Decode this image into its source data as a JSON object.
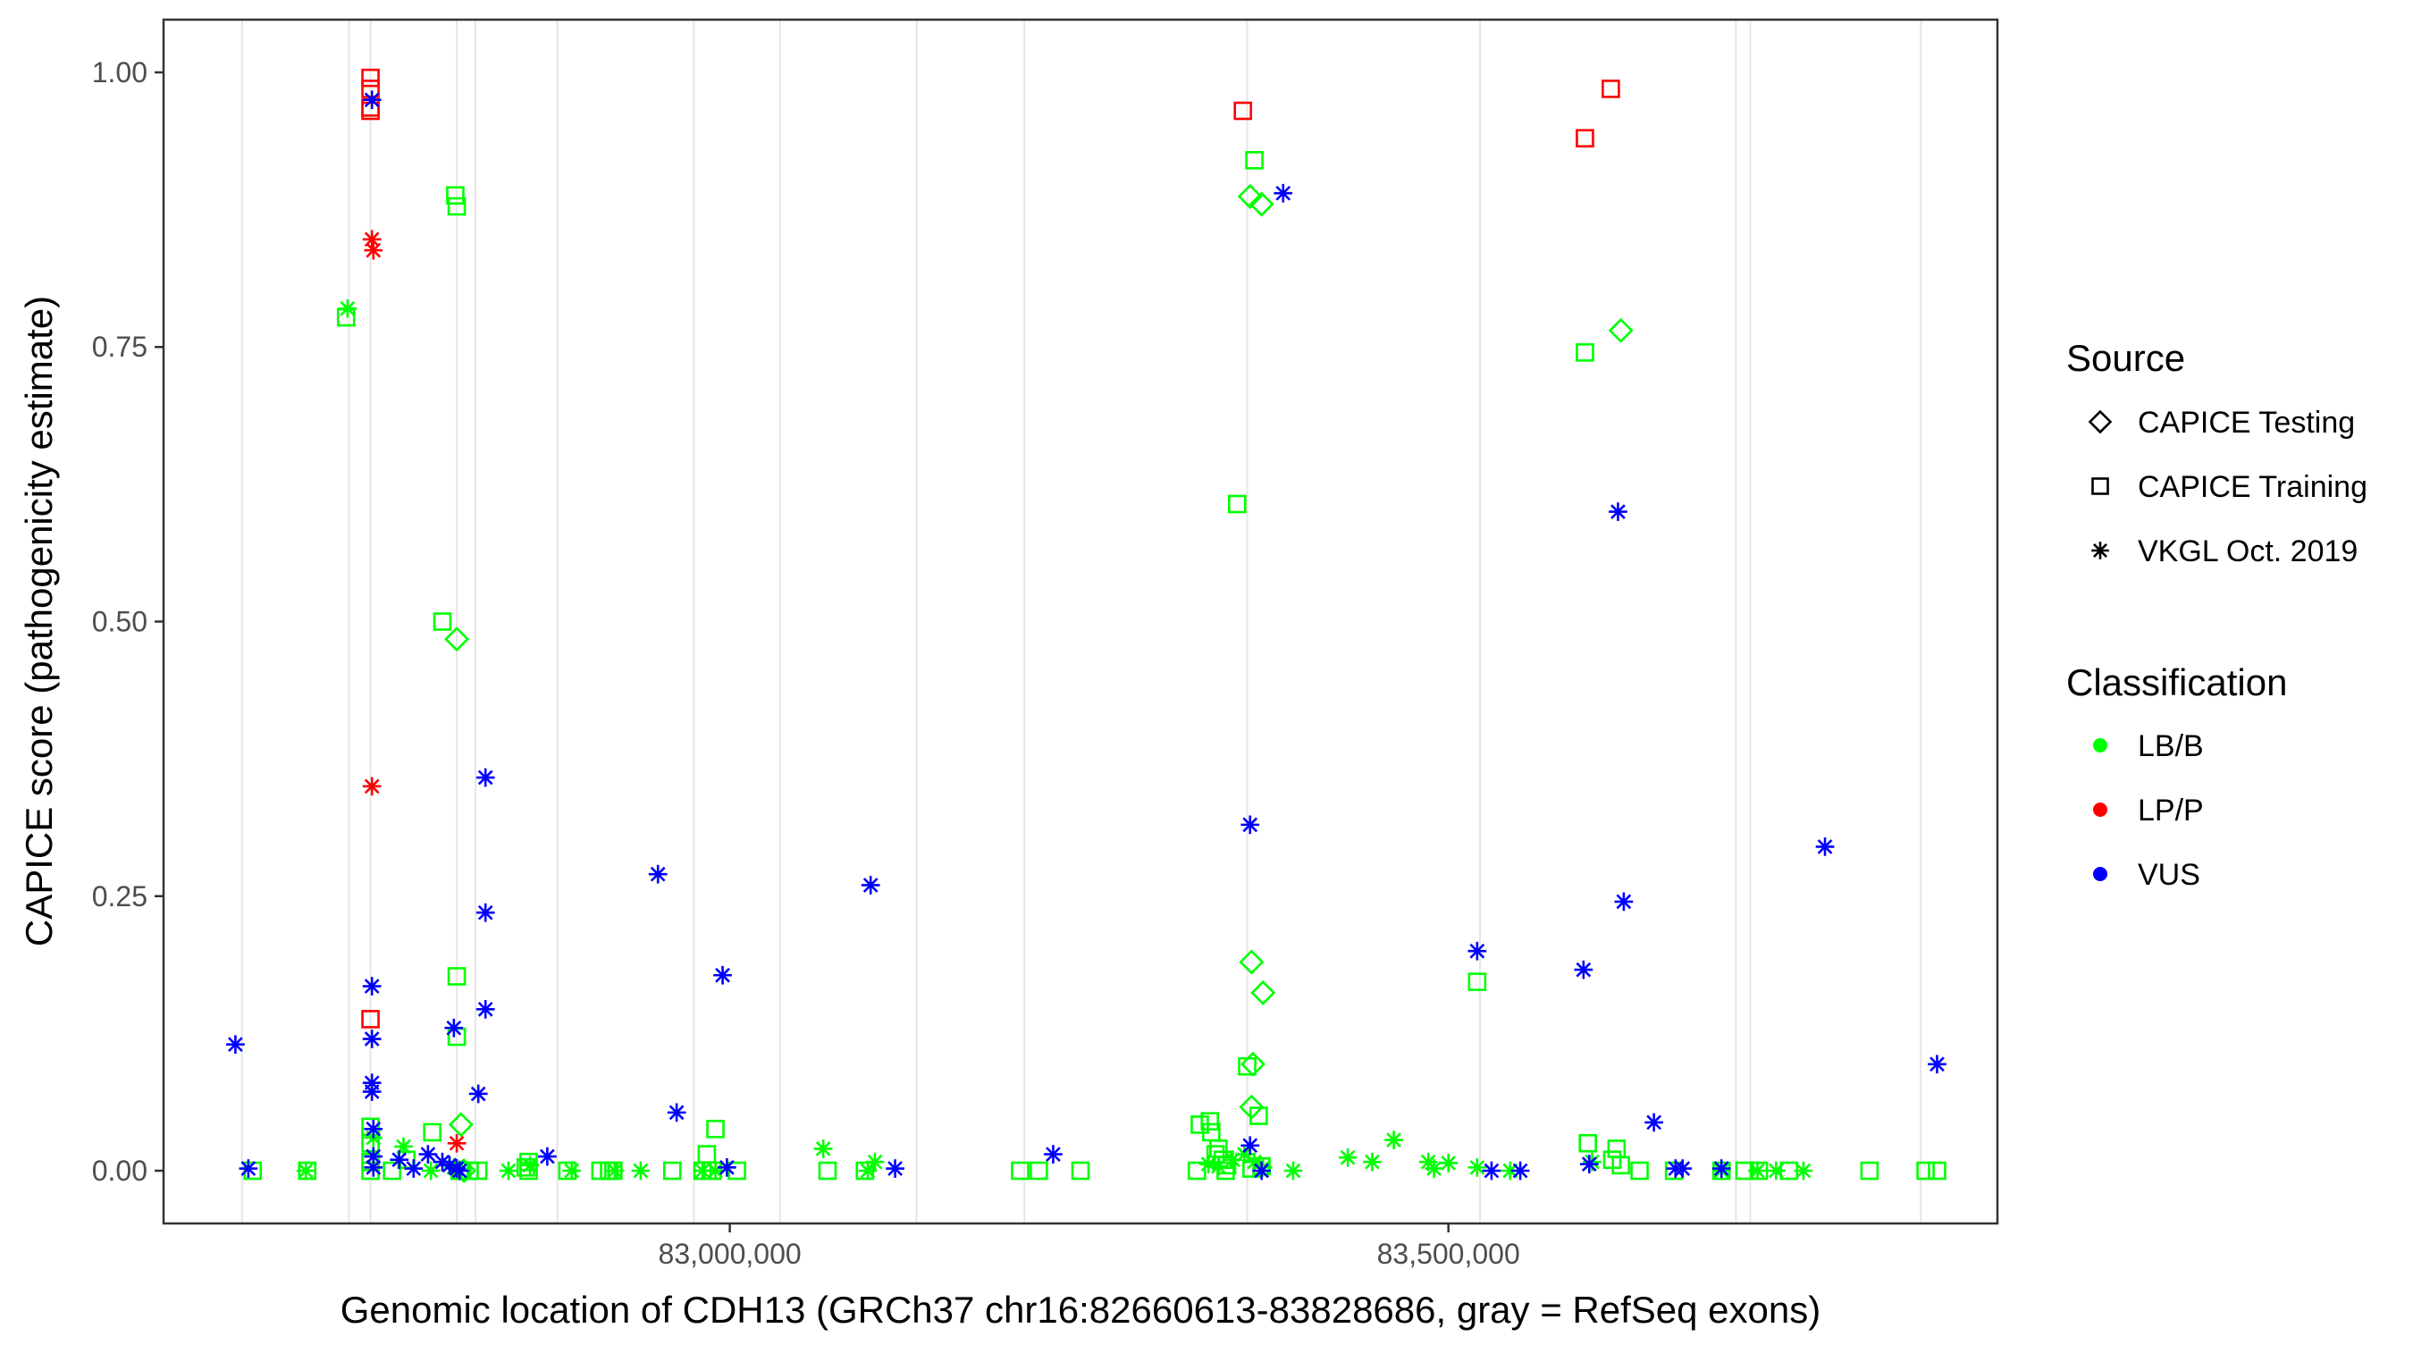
{
  "chart_data": {
    "type": "scatter",
    "xlabel": "Genomic location of CDH13 (GRCh37 chr16:82660613-83828686, gray = RefSeq exons)",
    "ylabel": "CAPICE score (pathogenicity estimate)",
    "xlim": [
      82606000,
      83882000
    ],
    "ylim": [
      -0.048,
      1.048
    ],
    "x_ticks": [
      83000000,
      83500000
    ],
    "x_tick_labels": [
      "83,000,000",
      "83,500,000"
    ],
    "y_ticks": [
      0,
      0.25,
      0.5,
      0.75,
      1.0
    ],
    "y_tick_labels": [
      "0.00",
      "0.25",
      "0.50",
      "0.75",
      "1.00"
    ],
    "grid": "exon lines only",
    "exons": [
      82660613,
      82735000,
      82750000,
      82810000,
      82823000,
      82880000,
      82975000,
      83035000,
      83130000,
      83205000,
      83360000,
      83522000,
      83700000,
      83710000,
      83828686
    ],
    "legend": {
      "position": "right",
      "shape_title": "Source",
      "shape_items": [
        {
          "label": "CAPICE Testing",
          "shape": "diamond"
        },
        {
          "label": "CAPICE Training",
          "shape": "square"
        },
        {
          "label": "VKGL Oct. 2019",
          "shape": "asterisk"
        }
      ],
      "color_title": "Classification",
      "color_items": [
        {
          "label": "LB/B",
          "color": "#00ff00"
        },
        {
          "label": "LP/P",
          "color": "#ff0000"
        },
        {
          "label": "VUS",
          "color": "#0000ff"
        }
      ]
    },
    "colors": {
      "LB/B": "#00ff00",
      "LP/P": "#ff0000",
      "VUS": "#0000ff"
    },
    "series": [
      {
        "name": "CAPICE Training",
        "shape": "square",
        "classification": "LP/P",
        "x": [
          82750000,
          82750000,
          82750000,
          82750000,
          82750000,
          83357000,
          83595000,
          83613000
        ],
        "y": [
          0.995,
          0.985,
          0.968,
          0.965,
          0.138,
          0.965,
          0.94,
          0.985
        ]
      },
      {
        "name": "CAPICE Training",
        "shape": "square",
        "classification": "LB/B",
        "x": [
          82668000,
          82706000,
          82733000,
          82750000,
          82750000,
          82750000,
          82750000,
          82765000,
          82775000,
          82793000,
          82800000,
          82809000,
          82810000,
          82810000,
          82810000,
          82812000,
          82813000,
          82819000,
          82825000,
          82858000,
          82860000,
          82860000,
          82887000,
          82910000,
          82916000,
          82919000,
          82960000,
          82981000,
          82984000,
          82988000,
          82990000,
          83005000,
          83068000,
          83094000,
          83202000,
          83215000,
          83244000,
          83325000,
          83327000,
          83334000,
          83335000,
          83338000,
          83340000,
          83343000,
          83346000,
          83353000,
          83360000,
          83363000,
          83365000,
          83368000,
          83370000,
          83345000,
          83520000,
          83595000,
          83597000,
          83614000,
          83617000,
          83620000,
          83633000,
          83657000,
          83690000,
          83706000,
          83716000,
          83737000,
          83793000,
          83832000,
          83840000
        ],
        "y": [
          0,
          0,
          0.777,
          0.04,
          0.025,
          0.008,
          0,
          0,
          0.01,
          0.035,
          0.5,
          0.888,
          0.878,
          0.177,
          0.122,
          0,
          0,
          0,
          0,
          0.003,
          0.008,
          0,
          0,
          0,
          0,
          0,
          0,
          0,
          0.015,
          0,
          0.038,
          0,
          0,
          0,
          0,
          0,
          0,
          0,
          0.042,
          0.045,
          0.035,
          0.015,
          0.02,
          0.01,
          0.005,
          0.607,
          0.095,
          0.002,
          0.92,
          0.05,
          0.004,
          0,
          0.172,
          0.745,
          0.025,
          0.01,
          0.02,
          0.005,
          0,
          0,
          0,
          0,
          0,
          0,
          0,
          0,
          0
        ],
        "note": ""
      },
      {
        "name": "CAPICE Testing",
        "shape": "diamond",
        "classification": "LB/B",
        "x": [
          82810000,
          82813000,
          82815000,
          83362000,
          83364000,
          83370000,
          83363000,
          83371000,
          83363000,
          83620000
        ],
        "y": [
          0.484,
          0.042,
          0,
          0.887,
          0.097,
          0.88,
          0.19,
          0.162,
          0.058,
          0.765
        ]
      },
      {
        "name": "VKGL Oct. 2019",
        "shape": "asterisk",
        "classification": "LP/P",
        "x": [
          82751000,
          82752000,
          82751000,
          82810000
        ],
        "y": [
          0.848,
          0.838,
          0.35,
          0.025
        ]
      },
      {
        "name": "VKGL Oct. 2019",
        "shape": "asterisk",
        "classification": "LB/B",
        "x": [
          82705000,
          82734000,
          82752000,
          82773000,
          82792000,
          82808000,
          82846000,
          82861000,
          82890000,
          82920000,
          82938000,
          82981000,
          82990000,
          83065000,
          83096000,
          83101000,
          83333000,
          83340000,
          83350000,
          83358000,
          83365000,
          83371000,
          83392000,
          83430000,
          83447000,
          83462000,
          83486000,
          83490000,
          83500000,
          83520000,
          83543000,
          83600000,
          83690000,
          83715000,
          83728000,
          83747000
        ],
        "y": [
          0,
          0.785,
          0.03,
          0.022,
          0,
          0.003,
          0,
          0.005,
          0,
          0,
          0,
          0,
          0,
          0.02,
          0,
          0.008,
          0.006,
          0.004,
          0.01,
          0.015,
          0.008,
          0.003,
          0,
          0.012,
          0.008,
          0.028,
          0.008,
          0.002,
          0.007,
          0.003,
          0,
          0.008,
          0,
          0,
          0,
          0
        ]
      },
      {
        "name": "VKGL Oct. 2019",
        "shape": "asterisk",
        "classification": "VUS",
        "x": [
          82656000,
          82665000,
          82751000,
          82751000,
          82751000,
          82751000,
          82751000,
          82752000,
          82752000,
          82752000,
          82770000,
          82780000,
          82790000,
          82800000,
          82805000,
          82808000,
          82810000,
          82812000,
          82825000,
          82830000,
          82830000,
          82830000,
          82873000,
          82950000,
          82963000,
          82995000,
          82998000,
          83098000,
          83115000,
          83225000,
          83362000,
          83362000,
          83385000,
          83370000,
          83520000,
          83530000,
          83550000,
          83594000,
          83598000,
          83618000,
          83622000,
          83643000,
          83658000,
          83663000,
          83690000,
          83762000,
          83840000
        ],
        "y": [
          0.115,
          0.002,
          0.975,
          0.168,
          0.12,
          0.08,
          0.072,
          0.038,
          0.013,
          0.003,
          0.01,
          0.002,
          0.015,
          0.008,
          0.005,
          0.13,
          0.002,
          0,
          0.07,
          0.358,
          0.235,
          0.147,
          0.013,
          0.27,
          0.053,
          0.178,
          0.003,
          0.26,
          0.002,
          0.015,
          0.315,
          0.023,
          0.89,
          0,
          0.2,
          0,
          0,
          0.183,
          0.006,
          0.6,
          0.245,
          0.044,
          0.002,
          0.002,
          0.002,
          0.295,
          0.097
        ]
      }
    ]
  }
}
